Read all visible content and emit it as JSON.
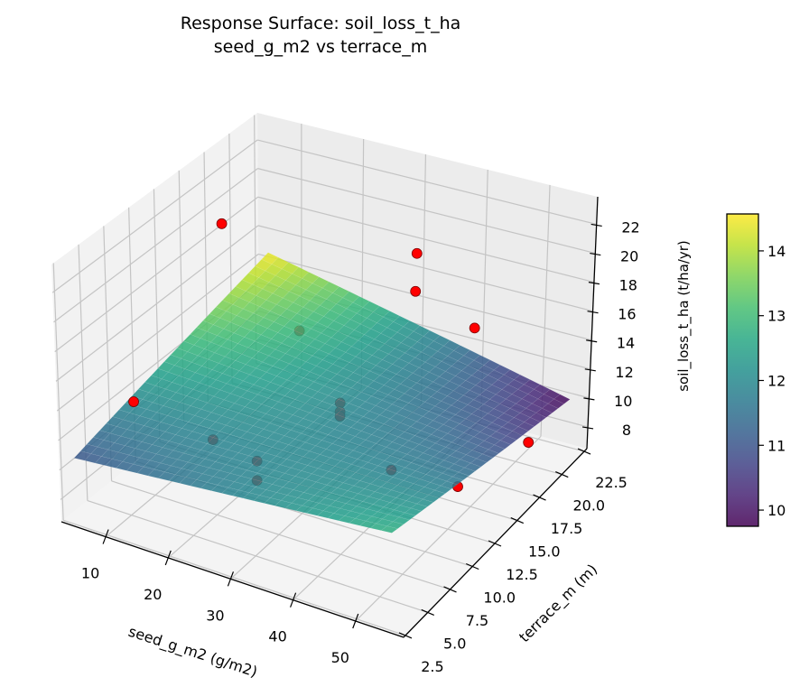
{
  "chart_data": {
    "type": "surface3d",
    "title": "Response Surface: soil_loss_t_ha",
    "subtitle": "seed_g_m2 vs terrace_m",
    "xlabel": "seed_g_m2 (g/m2)",
    "ylabel": "terrace_m (m)",
    "zlabel": "soil_loss_t_ha (t/ha/yr)",
    "xlim": [
      2.9,
      57.7
    ],
    "ylim": [
      2.3,
      22.8
    ],
    "zlim": [
      6.5,
      23.9
    ],
    "x_ticks": [
      "10",
      "20",
      "30",
      "40",
      "50"
    ],
    "y_ticks": [
      "2.5",
      "5.0",
      "7.5",
      "10.0",
      "12.5",
      "15.0",
      "17.5",
      "20.0",
      "22.5"
    ],
    "z_ticks": [
      "8",
      "10",
      "12",
      "14",
      "16",
      "18",
      "20",
      "22"
    ],
    "grid": true,
    "colormap": "viridis",
    "surface": {
      "x_range": [
        5,
        55
      ],
      "y_range": [
        2.5,
        22.5
      ],
      "corner_values": {
        "xmin_ymin": 11.0,
        "xmin_ymax": 14.5,
        "xmax_ymax": 9.8,
        "xmax_ymin": 12.8
      }
    },
    "colorbar": {
      "range": [
        9.75,
        14.57
      ],
      "ticks": [
        "10",
        "11",
        "12",
        "13",
        "14"
      ]
    },
    "points_color": "#ff0000",
    "points": [
      {
        "x": 13.3,
        "y": 12.6,
        "z": 22.7
      },
      {
        "x": 38.5,
        "y": 16.3,
        "z": 21.6
      },
      {
        "x": 38.4,
        "y": 16.3,
        "z": 19.0
      },
      {
        "x": 50.6,
        "y": 14.4,
        "z": 19.0
      },
      {
        "x": 10.0,
        "y": 5.5,
        "z": 13.9
      },
      {
        "x": 51.0,
        "y": 20.7,
        "z": 7.5
      },
      {
        "x": 52.8,
        "y": 11.5,
        "z": 10.3
      },
      {
        "x": 16.6,
        "y": 18.4,
        "z": 12.6
      },
      {
        "x": 29.4,
        "y": 14.4,
        "z": 11.4
      },
      {
        "x": 29.4,
        "y": 14.4,
        "z": 10.8
      },
      {
        "x": 29.4,
        "y": 14.4,
        "z": 10.5
      },
      {
        "x": 18.2,
        "y": 8.3,
        "z": 10.9
      },
      {
        "x": 28.1,
        "y": 6.4,
        "z": 11.8
      },
      {
        "x": 28.1,
        "y": 6.4,
        "z": 10.5
      },
      {
        "x": 43.8,
        "y": 10.3,
        "z": 11.0
      }
    ]
  }
}
